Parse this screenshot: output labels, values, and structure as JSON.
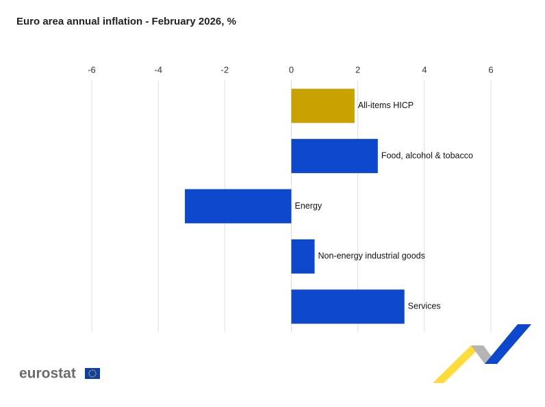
{
  "chart_data": {
    "type": "hbar",
    "title": "Euro area annual inflation - February 2026, %",
    "categories": [
      "All-items HICP",
      "Food, alcohol & tobacco",
      "Energy",
      "Non-energy industrial goods",
      "Services"
    ],
    "values": [
      1.9,
      2.6,
      -3.2,
      0.7,
      3.4
    ],
    "colors": [
      "#c9a200",
      "#0d47cc",
      "#0d47cc",
      "#0d47cc",
      "#0d47cc"
    ],
    "xlim": [
      -6,
      6
    ],
    "xticks": [
      -6,
      -4,
      -2,
      0,
      2,
      4,
      6
    ],
    "grid": true
  },
  "logo": "eurostat"
}
